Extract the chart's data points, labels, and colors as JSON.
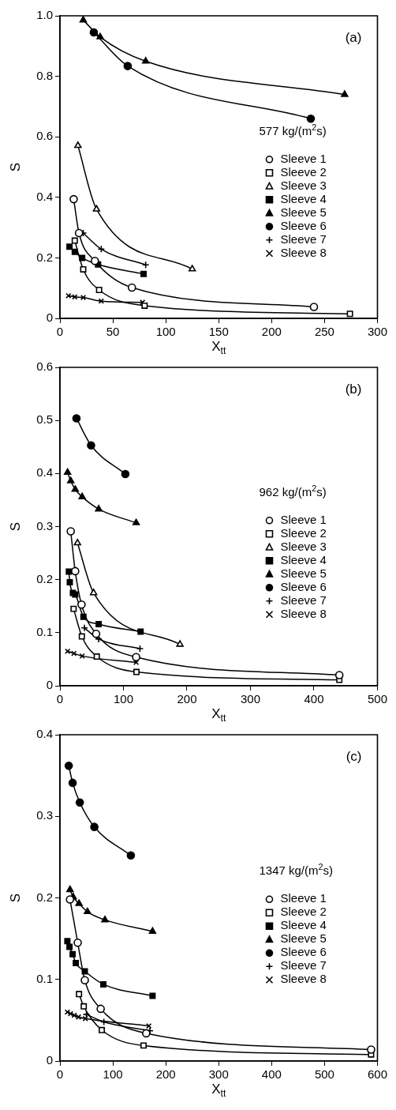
{
  "chart_data": [
    {
      "type": "line",
      "xlabel": "X$_{tt}$",
      "ylabel": "S",
      "annotations": [
        "(a)",
        "577 kg/(m$^{2}$s)"
      ],
      "xlim": [
        0,
        300
      ],
      "xticks": [
        0,
        50,
        100,
        150,
        200,
        250,
        300
      ],
      "ylim": [
        0,
        1
      ],
      "yticks": [
        0,
        0.2,
        0.4,
        0.6,
        0.8,
        {
          "value": 1,
          "label": "1.0"
        }
      ],
      "grid": false,
      "legend": "right",
      "series": [
        {
          "name": "Sleeve 1",
          "color": "#000000",
          "marker": "circle-open",
          "x": [
            13,
            18,
            33,
            68,
            240
          ],
          "values": [
            0.394,
            0.282,
            0.19,
            0.102,
            0.038
          ]
        },
        {
          "name": "Sleeve 2",
          "color": "#000000",
          "marker": "square-open",
          "x": [
            14,
            22,
            37,
            80,
            274
          ],
          "values": [
            0.257,
            0.162,
            0.094,
            0.042,
            0.015
          ]
        },
        {
          "name": "Sleeve 3",
          "color": "#000000",
          "marker": "triangle-open",
          "x": [
            17,
            34.5,
            125
          ],
          "values": [
            0.571,
            0.361,
            0.163
          ]
        },
        {
          "name": "Sleeve 4",
          "color": "#000000",
          "marker": "square",
          "x": [
            9,
            14,
            21,
            36,
            79
          ],
          "values": [
            0.237,
            0.22,
            0.2,
            0.178,
            0.147
          ]
        },
        {
          "name": "Sleeve 5",
          "color": "#000000",
          "marker": "triangle",
          "x": [
            22,
            38,
            81,
            269
          ],
          "values": [
            0.986,
            0.93,
            0.85,
            0.74
          ]
        },
        {
          "name": "Sleeve 6",
          "color": "#000000",
          "marker": "circle",
          "x": [
            32,
            64,
            237
          ],
          "values": [
            0.945,
            0.834,
            0.66
          ]
        },
        {
          "name": "Sleeve 7",
          "color": "#000000",
          "marker": "cross",
          "x": [
            22,
            39,
            81
          ],
          "values": [
            0.282,
            0.229,
            0.177
          ]
        },
        {
          "name": "Sleeve 8",
          "color": "#000000",
          "marker": "x",
          "x": [
            8,
            14,
            22,
            39,
            78
          ],
          "values": [
            0.075,
            0.071,
            0.069,
            0.057,
            0.053
          ]
        }
      ]
    },
    {
      "type": "line",
      "xlabel": "X$_{tt}$",
      "ylabel": "S",
      "annotations": [
        "(b)",
        "962 kg/(m$^{2}$s)"
      ],
      "xlim": [
        0,
        500
      ],
      "xticks": [
        0,
        100,
        200,
        300,
        400,
        500
      ],
      "ylim": [
        0,
        0.6
      ],
      "yticks": [
        0,
        0.1,
        0.2,
        0.3,
        0.4,
        0.5,
        0.6
      ],
      "grid": false,
      "legend": "right",
      "series": [
        {
          "name": "Sleeve 1",
          "color": "#000000",
          "marker": "circle-open",
          "x": [
            17,
            24,
            34,
            57,
            120,
            440
          ],
          "values": [
            0.291,
            0.216,
            0.153,
            0.098,
            0.054,
            0.02
          ]
        },
        {
          "name": "Sleeve 2",
          "color": "#000000",
          "marker": "square-open",
          "x": [
            21.5,
            34.5,
            58,
            120.5,
            440
          ],
          "values": [
            0.145,
            0.093,
            0.055,
            0.026,
            0.011
          ]
        },
        {
          "name": "Sleeve 3",
          "color": "#000000",
          "marker": "triangle-open",
          "x": [
            27.6,
            53,
            189
          ],
          "values": [
            0.269,
            0.175,
            0.078
          ]
        },
        {
          "name": "Sleeve 4",
          "color": "#000000",
          "marker": "square",
          "x": [
            14,
            15.5,
            20.4,
            24,
            37,
            61,
            127
          ],
          "values": [
            0.215,
            0.195,
            0.175,
            0.172,
            0.13,
            0.116,
            0.102
          ]
        },
        {
          "name": "Sleeve 5",
          "color": "#000000",
          "marker": "triangle",
          "x": [
            12,
            17,
            24,
            35,
            61,
            120
          ],
          "values": [
            0.402,
            0.386,
            0.37,
            0.356,
            0.333,
            0.307
          ]
        },
        {
          "name": "Sleeve 6",
          "color": "#000000",
          "marker": "circle",
          "x": [
            26,
            49,
            103
          ],
          "values": [
            0.504,
            0.453,
            0.399
          ]
        },
        {
          "name": "Sleeve 7",
          "color": "#000000",
          "marker": "cross",
          "x": [
            38.6,
            61,
            126
          ],
          "values": [
            0.109,
            0.088,
            0.07
          ]
        },
        {
          "name": "Sleeve 8",
          "color": "#000000",
          "marker": "x",
          "x": [
            12,
            22,
            35,
            120
          ],
          "values": [
            0.065,
            0.061,
            0.056,
            0.044
          ]
        }
      ]
    },
    {
      "type": "line",
      "xlabel": "X$_{tt}$",
      "ylabel": "S",
      "annotations": [
        "(c)",
        "1347 kg/(m$^{2}$s)"
      ],
      "xlim": [
        0,
        600
      ],
      "xticks": [
        0,
        100,
        200,
        300,
        400,
        500,
        600
      ],
      "ylim": [
        0,
        0.4
      ],
      "yticks": [
        0,
        0.1,
        0.2,
        0.3,
        0.4
      ],
      "grid": false,
      "legend": "right",
      "series": [
        {
          "name": "Sleeve 1",
          "color": "#000000",
          "marker": "circle-open",
          "x": [
            19,
            33.6,
            47,
            77,
            163,
            588
          ],
          "values": [
            0.198,
            0.145,
            0.099,
            0.064,
            0.034,
            0.014
          ]
        },
        {
          "name": "Sleeve 2",
          "color": "#000000",
          "marker": "square-open",
          "x": [
            36,
            45,
            79,
            158,
            588
          ],
          "values": [
            0.082,
            0.067,
            0.038,
            0.019,
            0.008
          ]
        },
        {
          "name": "Sleeve 4",
          "color": "#000000",
          "marker": "square",
          "x": [
            14,
            18,
            24,
            30,
            47,
            82,
            175
          ],
          "values": [
            0.147,
            0.14,
            0.131,
            0.12,
            0.11,
            0.094,
            0.08
          ]
        },
        {
          "name": "Sleeve 5",
          "color": "#000000",
          "marker": "triangle",
          "x": [
            19,
            25,
            36,
            52,
            85,
            175
          ],
          "values": [
            0.21,
            0.201,
            0.193,
            0.183,
            0.173,
            0.159
          ]
        },
        {
          "name": "Sleeve 6",
          "color": "#000000",
          "marker": "circle",
          "x": [
            16.6,
            24,
            37.5,
            65,
            134
          ],
          "values": [
            0.362,
            0.341,
            0.317,
            0.287,
            0.252
          ]
        },
        {
          "name": "Sleeve 7",
          "color": "#000000",
          "marker": "cross",
          "x": [
            50,
            83,
            170
          ],
          "values": [
            0.057,
            0.048,
            0.037
          ]
        },
        {
          "name": "Sleeve 8",
          "color": "#000000",
          "marker": "x",
          "x": [
            14,
            20,
            27,
            35,
            48,
            168
          ],
          "values": [
            0.06,
            0.058,
            0.056,
            0.054,
            0.052,
            0.043
          ]
        }
      ]
    }
  ]
}
